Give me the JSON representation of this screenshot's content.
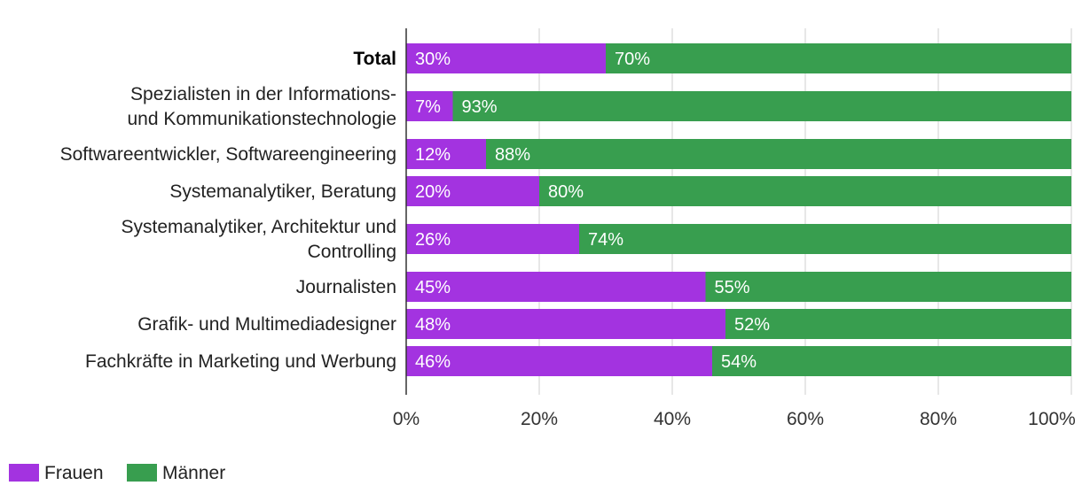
{
  "chart_data": {
    "type": "bar",
    "orientation": "horizontal",
    "stacked": true,
    "categories": [
      [
        "Total"
      ],
      [
        "Spezialisten in der Informations-",
        "und Kommunikationstechnologie"
      ],
      [
        "Softwareentwickler, Softwareengineering"
      ],
      [
        "Systemanalytiker, Beratung"
      ],
      [
        "Systemanalytiker, Architektur und",
        "Controlling"
      ],
      [
        "Journalisten"
      ],
      [
        "Grafik- und Multimediadesigner"
      ],
      [
        "Fachkräfte in Marketing und Werbung"
      ]
    ],
    "emphasized_category_index": 0,
    "series": [
      {
        "name": "Frauen",
        "color": "#a333e0",
        "values": [
          30,
          7,
          12,
          20,
          26,
          45,
          48,
          46
        ],
        "labels": [
          "30%",
          "7%",
          "12%",
          "20%",
          "26%",
          "45%",
          "48%",
          "46%"
        ]
      },
      {
        "name": "Männer",
        "color": "#389e4f",
        "values": [
          70,
          93,
          88,
          80,
          74,
          55,
          52,
          54
        ],
        "labels": [
          "70%",
          "93%",
          "88%",
          "80%",
          "74%",
          "55%",
          "52%",
          "54%"
        ]
      }
    ],
    "xlim": [
      0,
      100
    ],
    "xticks": [
      0,
      20,
      40,
      60,
      80,
      100
    ],
    "xtick_labels": [
      "0%",
      "20%",
      "40%",
      "60%",
      "80%",
      "100%"
    ],
    "grid": true,
    "legend_position": "bottom-left"
  }
}
